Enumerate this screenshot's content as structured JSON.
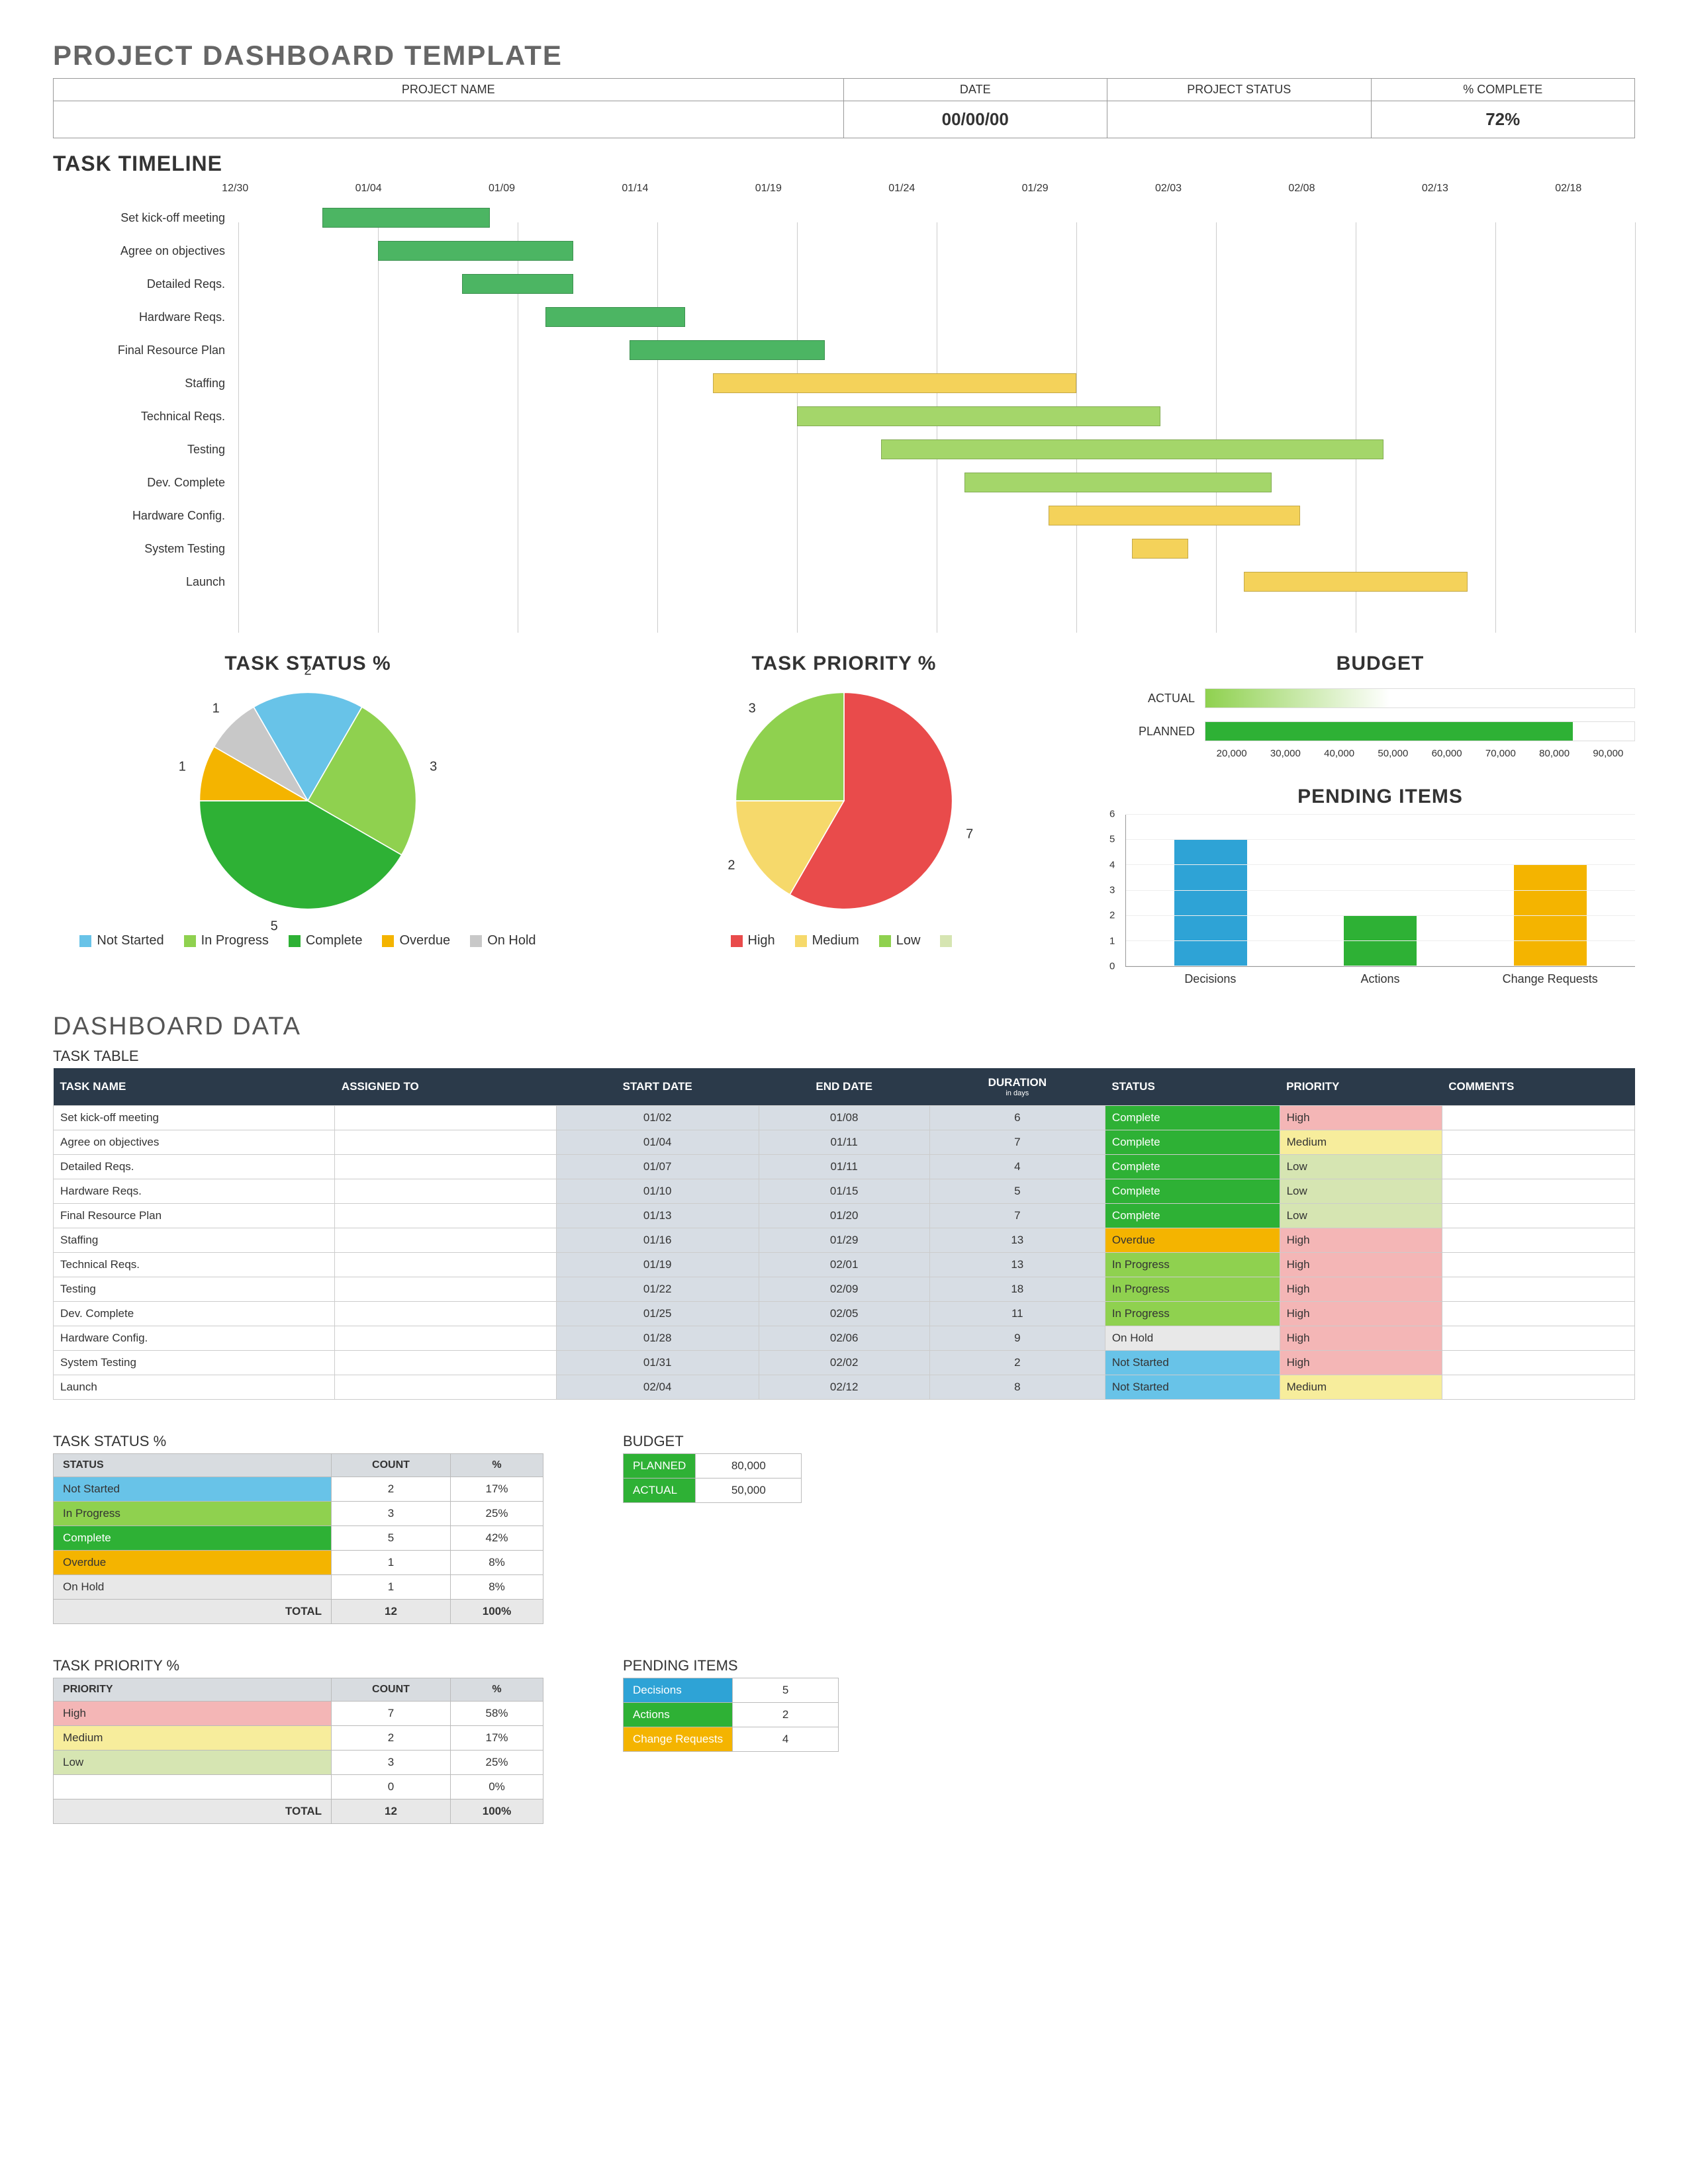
{
  "title": "PROJECT DASHBOARD TEMPLATE",
  "header": {
    "project_name_label": "PROJECT NAME",
    "project_name_value": "",
    "date_label": "DATE",
    "date_value": "00/00/00",
    "status_label": "PROJECT STATUS",
    "status_value": "",
    "pct_label": "% COMPLETE",
    "pct_value": "72%"
  },
  "colors": {
    "complete": "#2eb135",
    "in_progress": "#8fd14f",
    "not_started": "#68c3e8",
    "overdue": "#f4b400",
    "on_hold": "#c8c8c8",
    "high": "#e94b4b",
    "medium": "#f6d96b",
    "low": "#8fd14f",
    "low_faded": "#d6e5b2",
    "high_cell": "#f4b6b6",
    "medium_cell": "#f7ed9c",
    "low_cell": "#d6e5b2",
    "budget_planned": "#2eb135",
    "budget_actual_grad_a": "#8fd14f",
    "budget_actual_grad_b": "#ffffff",
    "decisions": "#2ea3d6",
    "actions": "#2eb135",
    "change_requests": "#f4b400",
    "table_header": "#2b3a4a",
    "row_alt": "#d7dde4"
  },
  "timeline": {
    "title": "TASK TIMELINE",
    "date_start": "12/30",
    "ticks": [
      "12/30",
      "01/04",
      "01/09",
      "01/14",
      "01/19",
      "01/24",
      "01/29",
      "02/03",
      "02/08",
      "02/13",
      "02/18"
    ],
    "tasks": [
      {
        "name": "Set kick-off meeting",
        "start": 3,
        "dur": 6,
        "status": "complete"
      },
      {
        "name": "Agree on objectives",
        "start": 5,
        "dur": 7,
        "status": "complete"
      },
      {
        "name": "Detailed Reqs.",
        "start": 8,
        "dur": 4,
        "status": "complete"
      },
      {
        "name": "Hardware Reqs.",
        "start": 11,
        "dur": 5,
        "status": "complete"
      },
      {
        "name": "Final Resource Plan",
        "start": 14,
        "dur": 7,
        "status": "complete"
      },
      {
        "name": "Staffing",
        "start": 17,
        "dur": 13,
        "status": "overdue"
      },
      {
        "name": "Technical Reqs.",
        "start": 20,
        "dur": 13,
        "status": "in_progress"
      },
      {
        "name": "Testing",
        "start": 23,
        "dur": 18,
        "status": "in_progress"
      },
      {
        "name": "Dev. Complete",
        "start": 26,
        "dur": 11,
        "status": "in_progress"
      },
      {
        "name": "Hardware Config.",
        "start": 29,
        "dur": 9,
        "status": "on_hold"
      },
      {
        "name": "System Testing",
        "start": 32,
        "dur": 2,
        "status": "not_started"
      },
      {
        "name": "Launch",
        "start": 36,
        "dur": 8,
        "status": "not_started"
      }
    ],
    "range_days": 50,
    "gantt_status_colors": {
      "complete": "#4cb563",
      "in_progress": "#a4d66a",
      "overdue": "#f4d25a",
      "on_hold": "#f4d25a",
      "not_started": "#f4d25a"
    }
  },
  "task_status_pie": {
    "title": "TASK STATUS %",
    "slices": [
      {
        "label": "Not Started",
        "value": 2,
        "color": "#68c3e8"
      },
      {
        "label": "In Progress",
        "value": 3,
        "color": "#8fd14f"
      },
      {
        "label": "Complete",
        "value": 5,
        "color": "#2eb135"
      },
      {
        "label": "Overdue",
        "value": 1,
        "color": "#f4b400"
      },
      {
        "label": "On Hold",
        "value": 1,
        "color": "#c8c8c8"
      }
    ],
    "legend": [
      "Not Started",
      "In Progress",
      "Complete",
      "Overdue",
      "On Hold"
    ]
  },
  "task_priority_pie": {
    "title": "TASK PRIORITY %",
    "slices": [
      {
        "label": "High",
        "value": 7,
        "color": "#e94b4b"
      },
      {
        "label": "Medium",
        "value": 2,
        "color": "#f6d96b"
      },
      {
        "label": "Low",
        "value": 3,
        "color": "#8fd14f"
      },
      {
        "label": "",
        "value": 0,
        "color": "#d6e5b2"
      }
    ],
    "legend": [
      "High",
      "Medium",
      "Low",
      ""
    ]
  },
  "budget_chart": {
    "title": "BUDGET",
    "range_min": 20000,
    "range_max": 90000,
    "ticks": [
      "20,000",
      "30,000",
      "40,000",
      "50,000",
      "60,000",
      "70,000",
      "80,000",
      "90,000"
    ],
    "bars": [
      {
        "label": "ACTUAL",
        "value": 50000,
        "type": "gradient"
      },
      {
        "label": "PLANNED",
        "value": 80000,
        "type": "solid"
      }
    ]
  },
  "pending_chart": {
    "title": "PENDING ITEMS",
    "ymax": 6,
    "bars": [
      {
        "label": "Decisions",
        "value": 5,
        "color": "#2ea3d6"
      },
      {
        "label": "Actions",
        "value": 2,
        "color": "#2eb135"
      },
      {
        "label": "Change Requests",
        "value": 4,
        "color": "#f4b400"
      }
    ]
  },
  "dashboard_data_title": "DASHBOARD DATA",
  "task_table": {
    "title": "TASK TABLE",
    "columns": [
      "TASK NAME",
      "ASSIGNED TO",
      "START DATE",
      "END DATE",
      "DURATION",
      "STATUS",
      "PRIORITY",
      "COMMENTS"
    ],
    "duration_sub": "in days",
    "rows": [
      {
        "name": "Set kick-off meeting",
        "assigned": "",
        "start": "01/02",
        "end": "01/08",
        "dur": "6",
        "status": "Complete",
        "priority": "High",
        "comments": ""
      },
      {
        "name": "Agree on objectives",
        "assigned": "",
        "start": "01/04",
        "end": "01/11",
        "dur": "7",
        "status": "Complete",
        "priority": "Medium",
        "comments": ""
      },
      {
        "name": "Detailed Reqs.",
        "assigned": "",
        "start": "01/07",
        "end": "01/11",
        "dur": "4",
        "status": "Complete",
        "priority": "Low",
        "comments": ""
      },
      {
        "name": "Hardware Reqs.",
        "assigned": "",
        "start": "01/10",
        "end": "01/15",
        "dur": "5",
        "status": "Complete",
        "priority": "Low",
        "comments": ""
      },
      {
        "name": "Final Resource Plan",
        "assigned": "",
        "start": "01/13",
        "end": "01/20",
        "dur": "7",
        "status": "Complete",
        "priority": "Low",
        "comments": ""
      },
      {
        "name": "Staffing",
        "assigned": "",
        "start": "01/16",
        "end": "01/29",
        "dur": "13",
        "status": "Overdue",
        "priority": "High",
        "comments": ""
      },
      {
        "name": "Technical Reqs.",
        "assigned": "",
        "start": "01/19",
        "end": "02/01",
        "dur": "13",
        "status": "In Progress",
        "priority": "High",
        "comments": ""
      },
      {
        "name": "Testing",
        "assigned": "",
        "start": "01/22",
        "end": "02/09",
        "dur": "18",
        "status": "In Progress",
        "priority": "High",
        "comments": ""
      },
      {
        "name": "Dev. Complete",
        "assigned": "",
        "start": "01/25",
        "end": "02/05",
        "dur": "11",
        "status": "In Progress",
        "priority": "High",
        "comments": ""
      },
      {
        "name": "Hardware Config.",
        "assigned": "",
        "start": "01/28",
        "end": "02/06",
        "dur": "9",
        "status": "On Hold",
        "priority": "High",
        "comments": ""
      },
      {
        "name": "System Testing",
        "assigned": "",
        "start": "01/31",
        "end": "02/02",
        "dur": "2",
        "status": "Not Started",
        "priority": "High",
        "comments": ""
      },
      {
        "name": "Launch",
        "assigned": "",
        "start": "02/04",
        "end": "02/12",
        "dur": "8",
        "status": "Not Started",
        "priority": "Medium",
        "comments": ""
      }
    ]
  },
  "status_summary": {
    "title": "TASK STATUS %",
    "columns": [
      "STATUS",
      "COUNT",
      "%"
    ],
    "rows": [
      {
        "label": "Not Started",
        "count": "2",
        "pct": "17%",
        "color": "#68c3e8"
      },
      {
        "label": "In Progress",
        "count": "3",
        "pct": "25%",
        "color": "#8fd14f"
      },
      {
        "label": "Complete",
        "count": "5",
        "pct": "42%",
        "color": "#2eb135",
        "text": "#fff"
      },
      {
        "label": "Overdue",
        "count": "1",
        "pct": "8%",
        "color": "#f4b400"
      },
      {
        "label": "On Hold",
        "count": "1",
        "pct": "8%",
        "color": "#e8e8e8"
      }
    ],
    "total_label": "TOTAL",
    "total_count": "12",
    "total_pct": "100%"
  },
  "budget_summary": {
    "title": "BUDGET",
    "rows": [
      {
        "label": "PLANNED",
        "value": "80,000",
        "color": "#2eb135",
        "text": "#fff"
      },
      {
        "label": "ACTUAL",
        "value": "50,000",
        "color": "#2eb135",
        "text": "#fff"
      }
    ]
  },
  "priority_summary": {
    "title": "TASK PRIORITY %",
    "columns": [
      "PRIORITY",
      "COUNT",
      "%"
    ],
    "rows": [
      {
        "label": "High",
        "count": "7",
        "pct": "58%",
        "color": "#f4b6b6"
      },
      {
        "label": "Medium",
        "count": "2",
        "pct": "17%",
        "color": "#f7ed9c"
      },
      {
        "label": "Low",
        "count": "3",
        "pct": "25%",
        "color": "#d6e5b2"
      },
      {
        "label": "",
        "count": "0",
        "pct": "0%",
        "color": "#ffffff"
      }
    ],
    "total_label": "TOTAL",
    "total_count": "12",
    "total_pct": "100%"
  },
  "pending_summary": {
    "title": "PENDING ITEMS",
    "rows": [
      {
        "label": "Decisions",
        "value": "5",
        "color": "#2ea3d6",
        "text": "#fff"
      },
      {
        "label": "Actions",
        "value": "2",
        "color": "#2eb135",
        "text": "#fff"
      },
      {
        "label": "Change Requests",
        "value": "4",
        "color": "#f4b400",
        "text": "#fff"
      }
    ]
  }
}
